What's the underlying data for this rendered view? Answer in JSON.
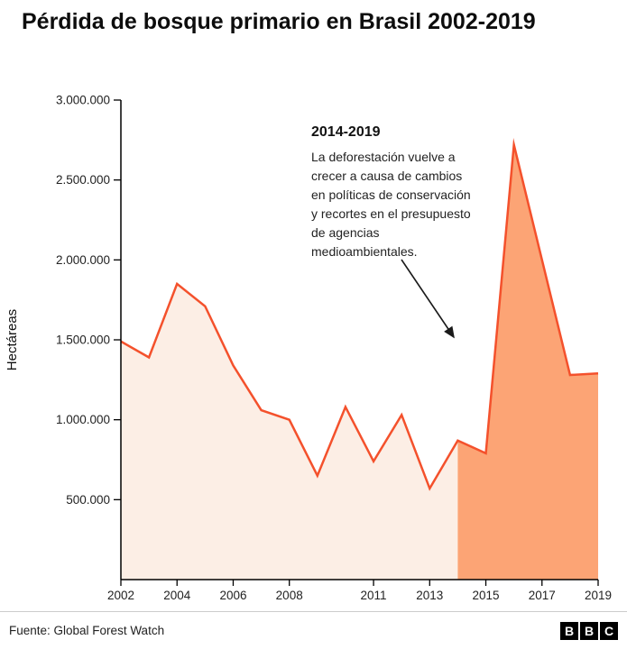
{
  "title": "Pérdida de bosque primario en Brasil 2002-2019",
  "annotation": {
    "heading": "2014-2019",
    "body": "La deforestación vuelve a\ncrecer a causa de cambios\nen políticas de conservación\ny recortes en el presupuesto\nde agencias\nmedioambientales."
  },
  "footer": {
    "source": "Fuente: Global Forest Watch",
    "logo_letters": [
      "B",
      "B",
      "C"
    ]
  },
  "chart_data": {
    "type": "area",
    "title": "Pérdida de bosque primario en Brasil 2002-2019",
    "xlabel": "",
    "ylabel": "Hectáreas",
    "x": [
      2002,
      2003,
      2004,
      2005,
      2006,
      2007,
      2008,
      2009,
      2010,
      2011,
      2012,
      2013,
      2014,
      2015,
      2016,
      2017,
      2018,
      2019
    ],
    "values": [
      1490000,
      1390000,
      1850000,
      1710000,
      1340000,
      1060000,
      1000000,
      650000,
      1080000,
      740000,
      1030000,
      570000,
      870000,
      790000,
      2720000,
      2000000,
      1280000,
      1290000
    ],
    "series_name": "Pérdida de bosque primario (hectáreas)",
    "highlight_from_year": 2014,
    "xlim": [
      2002,
      2019
    ],
    "ylim": [
      0,
      3000000
    ],
    "grid": false,
    "legend": "none",
    "y_ticks": [
      {
        "value": 3000000,
        "label": "3.000.000"
      },
      {
        "value": 2500000,
        "label": "2.500.000"
      },
      {
        "value": 2000000,
        "label": "2.000.000"
      },
      {
        "value": 1500000,
        "label": "1.500.000"
      },
      {
        "value": 1000000,
        "label": "1.000.000"
      },
      {
        "value": 500000,
        "label": "500.000"
      }
    ],
    "x_ticks": [
      {
        "value": 2002,
        "label": "2002"
      },
      {
        "value": 2004,
        "label": "2004"
      },
      {
        "value": 2006,
        "label": "2006"
      },
      {
        "value": 2008,
        "label": "2008"
      },
      {
        "value": 2011,
        "label": "2011"
      },
      {
        "value": 2013,
        "label": "2013"
      },
      {
        "value": 2015,
        "label": "2015"
      },
      {
        "value": 2017,
        "label": "2017"
      },
      {
        "value": 2019,
        "label": "2019"
      }
    ],
    "colors": {
      "line": "#f4512c",
      "area_light": "#fceee5",
      "area_dark": "#fca475",
      "axis": "#000000",
      "tick_text": "#222222",
      "arrow": "#1a1a1a"
    }
  }
}
